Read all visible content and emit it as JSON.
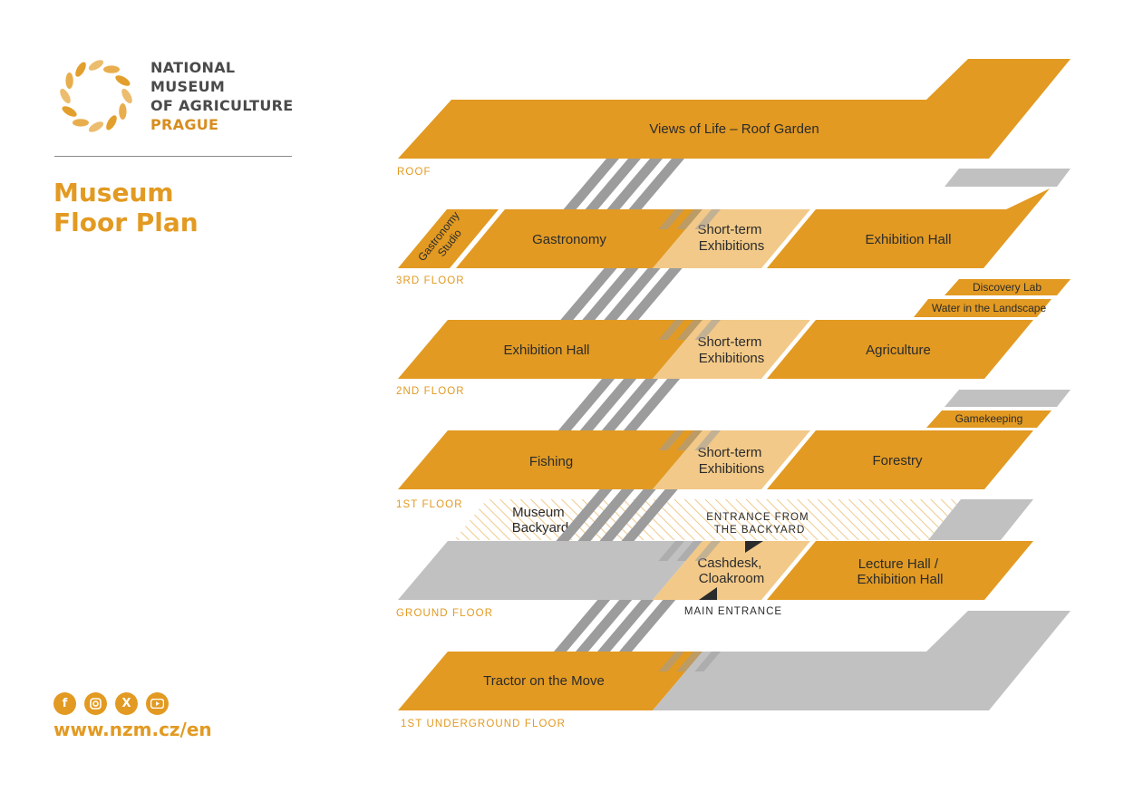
{
  "brand": {
    "line1": "NATIONAL",
    "line2": "MUSEUM",
    "line3": "OF AGRICULTURE",
    "city": "PRAGUE"
  },
  "title": {
    "line1": "Museum",
    "line2": "Floor Plan"
  },
  "floors": {
    "roof": "ROOF",
    "third": "3RD FLOOR",
    "second": "2ND FLOOR",
    "first": "1ST FLOOR",
    "ground": "GROUND FLOOR",
    "underground": "1ST UNDERGROUND FLOOR"
  },
  "rooms": {
    "roof_garden": "Views of Life – Roof Garden",
    "gastronomy_studio": [
      "Gastronomy",
      "Studio"
    ],
    "gastronomy": "Gastronomy",
    "short_term_3": [
      "Short-term",
      "Exhibitions"
    ],
    "exhibition_hall_3": "Exhibition Hall",
    "discovery_lab": "Discovery Lab",
    "water_landscape": "Water in the Landscape",
    "exhibition_hall_2": "Exhibition Hall",
    "short_term_2": [
      "Short-term",
      "Exhibitions"
    ],
    "agriculture": "Agriculture",
    "gamekeeping": "Gamekeeping",
    "fishing": "Fishing",
    "short_term_1": [
      "Short-term",
      "Exhibitions"
    ],
    "forestry": "Forestry",
    "museum_backyard": [
      "Museum",
      "Backyard"
    ],
    "cashdesk": [
      "Cashdesk,",
      "Cloakroom"
    ],
    "lecture_hall": [
      "Lecture Hall /",
      "Exhibition Hall"
    ],
    "tractor": "Tractor on the Move"
  },
  "entrances": {
    "backyard": [
      "ENTRANCE FROM",
      "THE BACKYARD"
    ],
    "main": "MAIN ENTRANCE"
  },
  "social": {
    "facebook": "facebook-icon",
    "instagram": "instagram-icon",
    "x": "x-icon",
    "youtube": "youtube-icon"
  },
  "website": "www.nzm.cz/en",
  "colors": {
    "orange": "#e29a22",
    "light_orange": "#f2c988",
    "gray": "#c1c1c1",
    "stair_gray": "#9c9c9c",
    "floor_label": "#e29a22"
  }
}
